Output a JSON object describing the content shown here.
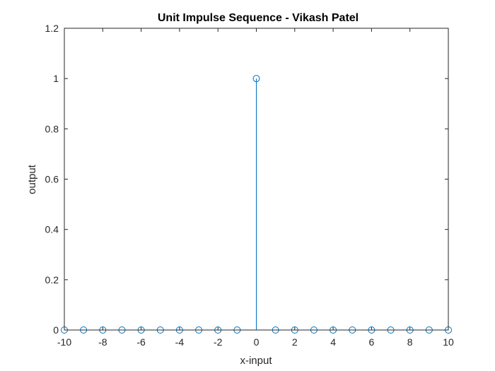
{
  "chart_data": {
    "type": "stem",
    "title": "Unit Impulse Sequence - Vikash Patel",
    "xlabel": "x-input",
    "ylabel": "output",
    "xlim": [
      -10,
      10
    ],
    "ylim": [
      0,
      1.2
    ],
    "xticks": [
      "-10",
      "-8",
      "-6",
      "-4",
      "-2",
      "0",
      "2",
      "4",
      "6",
      "8",
      "10"
    ],
    "yticks": [
      "0",
      "0.2",
      "0.4",
      "0.6",
      "0.8",
      "1",
      "1.2"
    ],
    "grid": false,
    "marker": "circle-open",
    "series_color": "#0072BD",
    "x": [
      -10,
      -9,
      -8,
      -7,
      -6,
      -5,
      -4,
      -3,
      -2,
      -1,
      0,
      1,
      2,
      3,
      4,
      5,
      6,
      7,
      8,
      9,
      10
    ],
    "y": [
      0,
      0,
      0,
      0,
      0,
      0,
      0,
      0,
      0,
      0,
      1,
      0,
      0,
      0,
      0,
      0,
      0,
      0,
      0,
      0,
      0
    ]
  }
}
